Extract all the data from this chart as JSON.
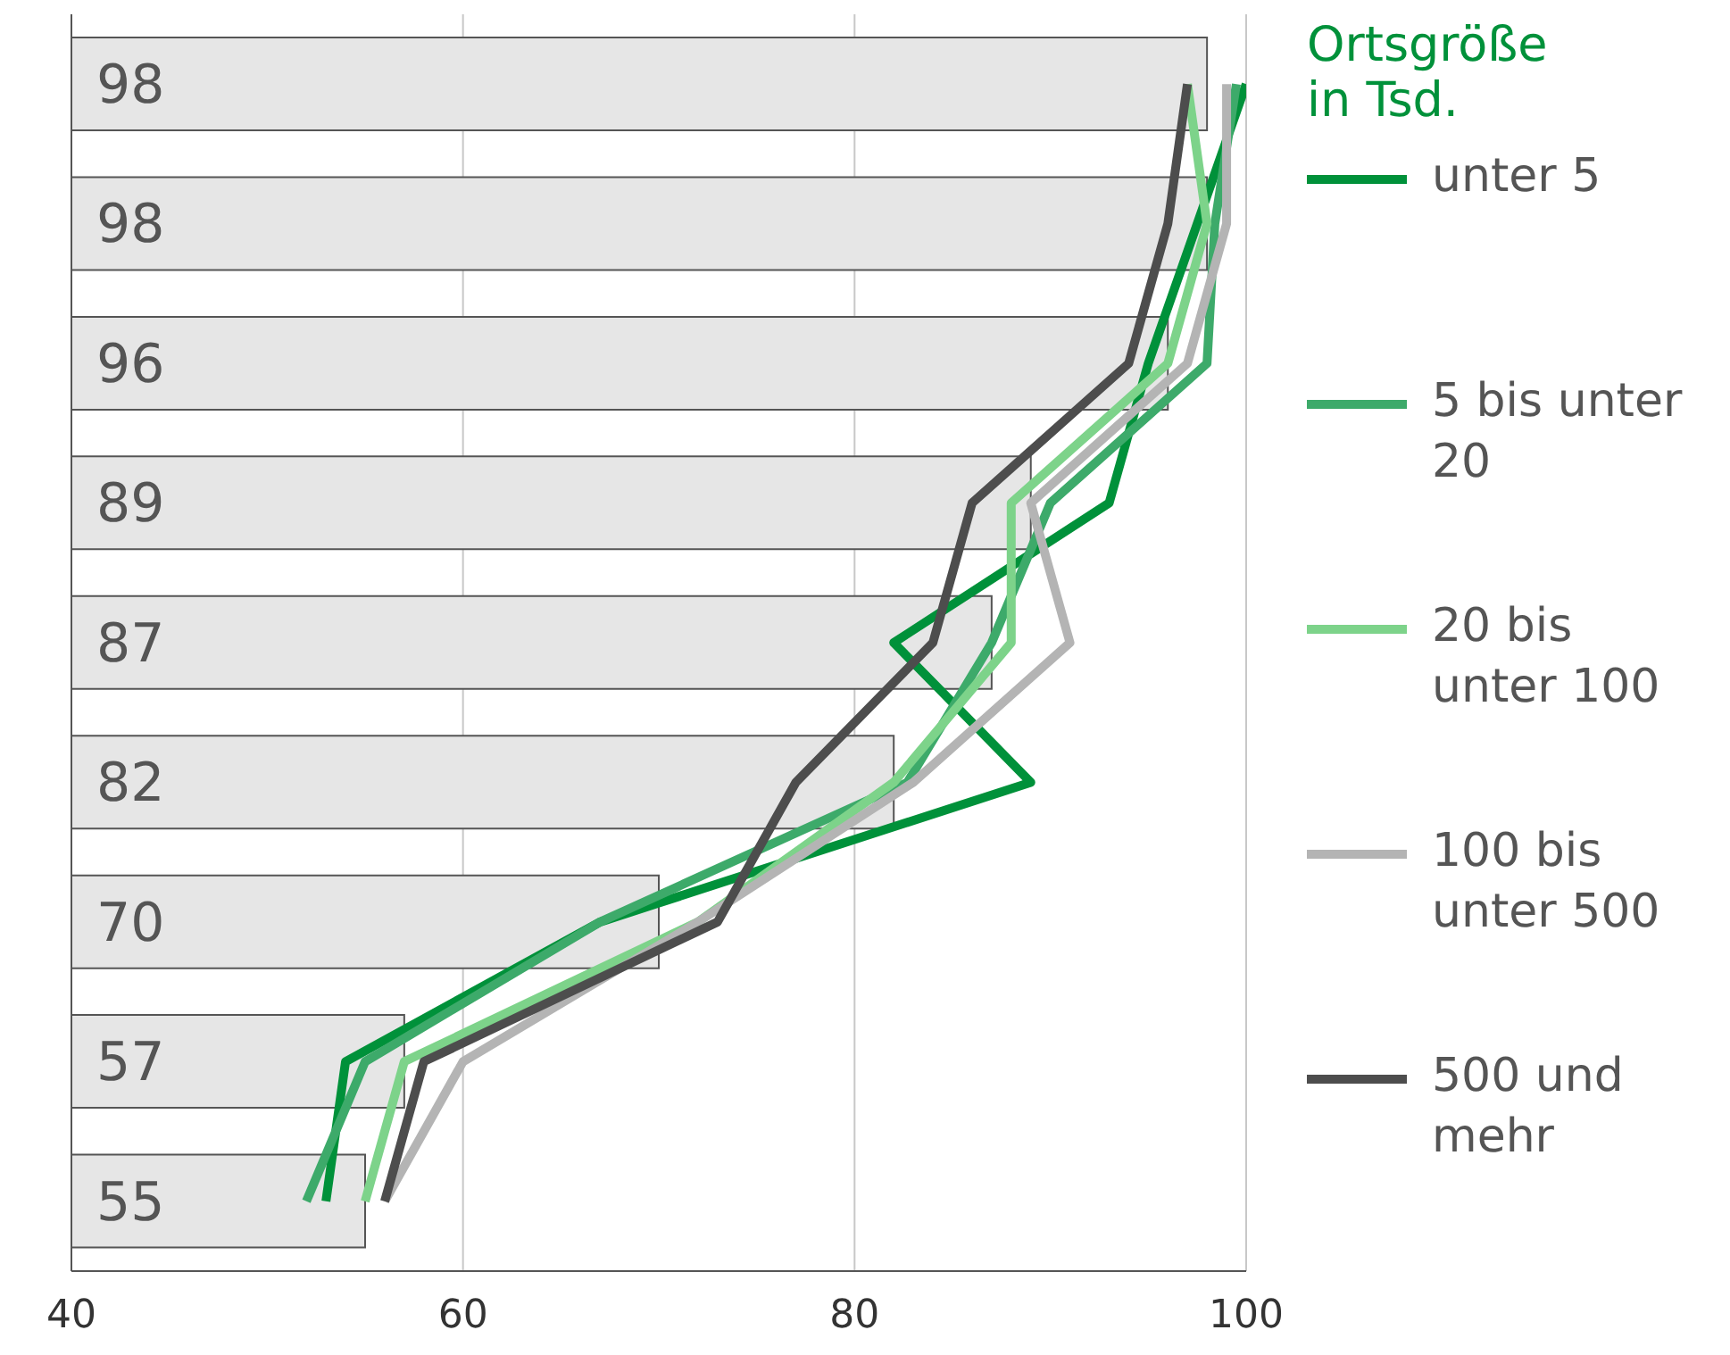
{
  "chart_data": {
    "type": "bar",
    "orientation": "horizontal",
    "categories": [
      null,
      null,
      null,
      null,
      null,
      null,
      null,
      null,
      null
    ],
    "series": [
      {
        "color": "#e6e6e6",
        "values": [
          98,
          98,
          96,
          89,
          87,
          82,
          70,
          57,
          55
        ],
        "value_labels": [
          "98",
          "98",
          "96",
          "89",
          "87",
          "82",
          "70",
          "57",
          "55"
        ]
      },
      {
        "type": "line",
        "name": "unter 5",
        "color": "#00913a",
        "values": [
          100,
          97.5,
          95,
          93,
          82,
          89,
          67,
          54,
          53
        ]
      },
      {
        "type": "line",
        "name": "5 bis unter 20",
        "color": "#3daa6a",
        "values": [
          99.5,
          98.4,
          98,
          90,
          87,
          82.7,
          67,
          55,
          52
        ]
      },
      {
        "type": "line",
        "name": "20 bis unter 100",
        "color": "#7dd38a",
        "values": [
          97,
          98,
          96,
          88,
          88,
          82,
          72,
          57,
          55
        ]
      },
      {
        "type": "line",
        "name": "100 bis unter 500",
        "color": "#b4b4b4",
        "values": [
          99,
          99,
          97,
          89,
          91,
          83,
          72,
          60,
          56
        ]
      },
      {
        "type": "line",
        "name": "500 und mehr",
        "color": "#4d4d4d",
        "values": [
          97,
          96,
          94,
          86,
          84,
          77,
          73,
          58,
          56
        ]
      }
    ],
    "xlim": [
      40,
      100
    ],
    "xticks": [
      40,
      60,
      80,
      100
    ],
    "grid": "x",
    "tick_labels": "x",
    "legend": "right",
    "legend_title": "Ortsgröße in Tsd.",
    "marker": "none",
    "line_style": "solid"
  }
}
